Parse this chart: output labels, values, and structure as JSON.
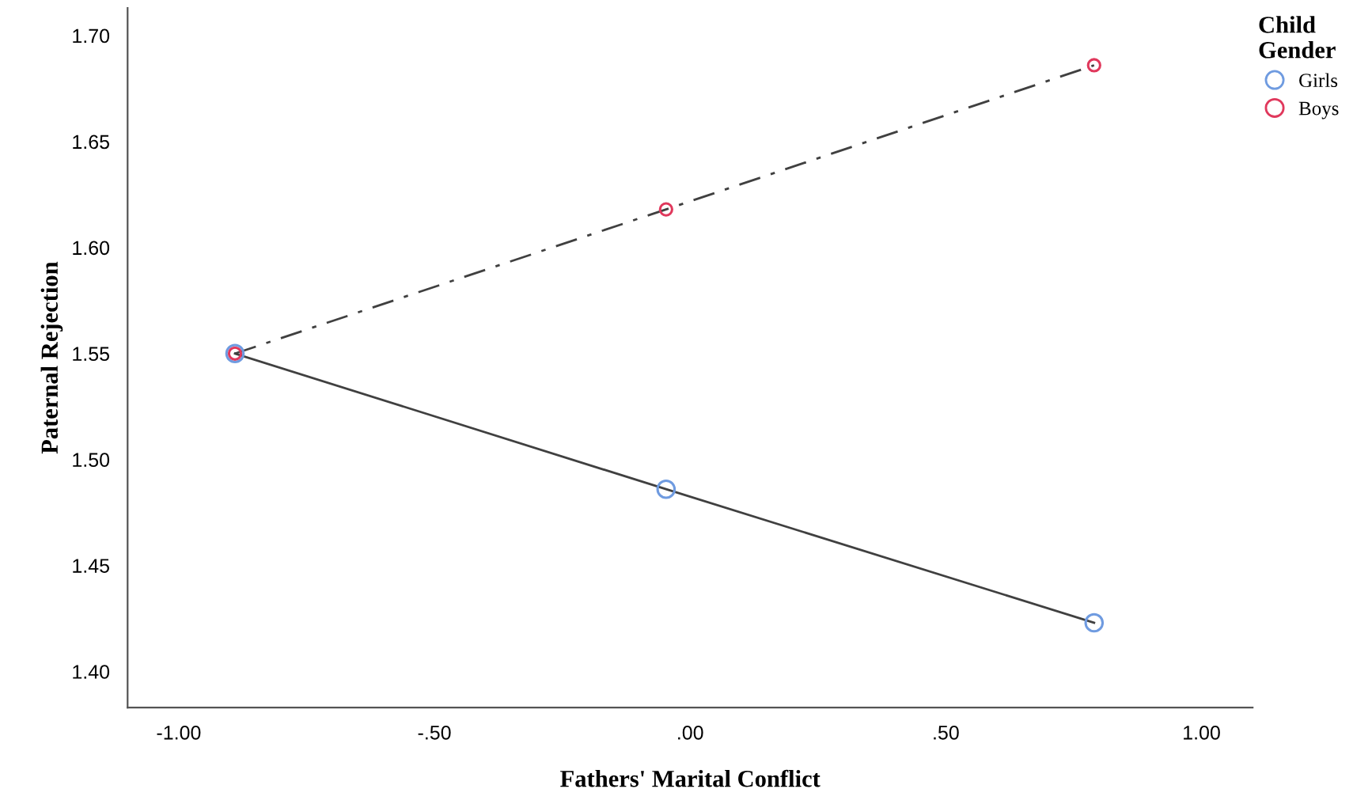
{
  "chart_data": {
    "type": "line",
    "xlabel": "Fathers' Marital Conflict",
    "ylabel": "Paternal Rejection",
    "legend_title": "Child\nGender",
    "legend": "top right",
    "grid": false,
    "marker": "circle",
    "xlim": [
      -1.1,
      1.1
    ],
    "xticks": [
      {
        "value": -1,
        "label": "-1.00"
      },
      {
        "value": -0.5,
        "label": "-.50"
      },
      {
        "value": 0,
        "label": ".00"
      },
      {
        "value": 0.5,
        "label": ".50"
      },
      {
        "value": 1,
        "label": "1.00"
      }
    ],
    "ylim": [
      1.383,
      1.713
    ],
    "yticks": [
      {
        "value": 1.4,
        "label": "1.40"
      },
      {
        "value": 1.45,
        "label": "1.45"
      },
      {
        "value": 1.5,
        "label": "1.50"
      },
      {
        "value": 1.55,
        "label": "1.55"
      },
      {
        "value": 1.6,
        "label": "1.60"
      },
      {
        "value": 1.65,
        "label": "1.65"
      },
      {
        "value": 1.7,
        "label": "1.70"
      }
    ],
    "series": [
      {
        "name": "Girls",
        "color": "#6f9be0",
        "line_style": "solid",
        "x": [
          -0.89,
          -0.047,
          0.79
        ],
        "values": [
          1.55,
          1.486,
          1.423
        ]
      },
      {
        "name": "Boys",
        "color": "#e0385c",
        "line_style": "dashed",
        "x": [
          -0.89,
          -0.047,
          0.79
        ],
        "values": [
          1.55,
          1.618,
          1.686
        ]
      }
    ]
  }
}
